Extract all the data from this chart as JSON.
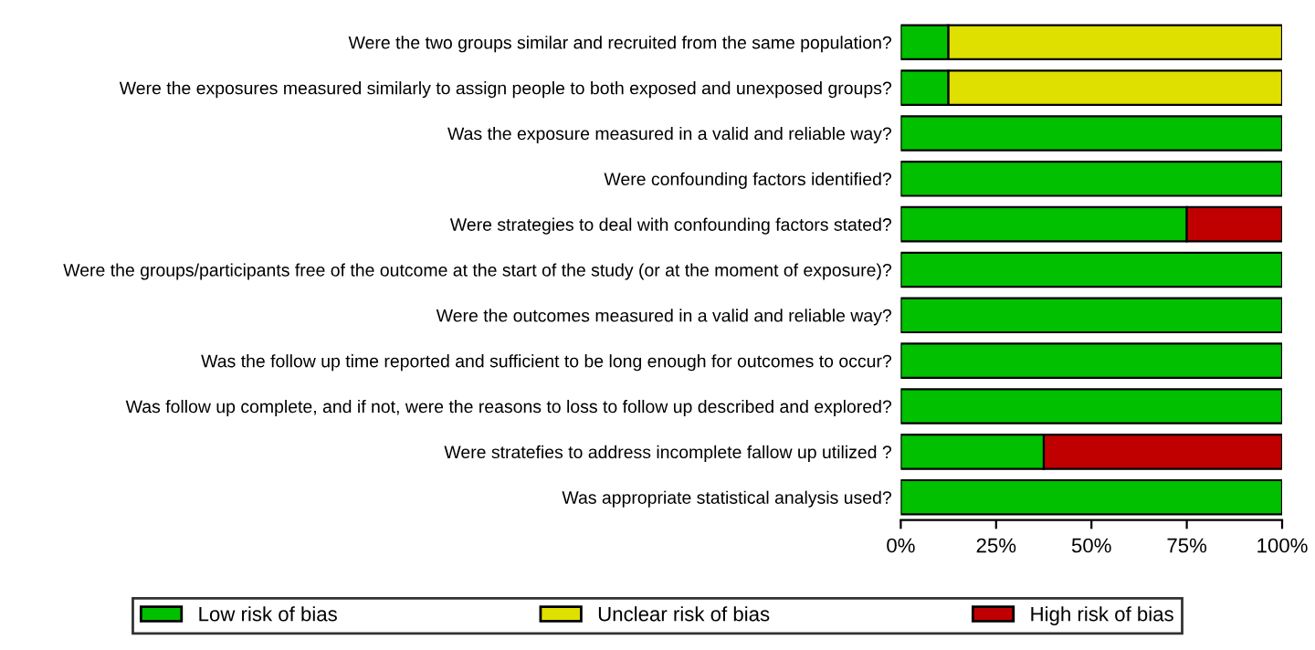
{
  "chart_data": {
    "type": "bar",
    "orientation": "horizontal",
    "stacked": true,
    "categories": [
      "Were the two groups similar and recruited from the same population?",
      "Were the exposures measured similarly to assign people to both exposed and unexposed groups?",
      "Was the exposure measured in a valid and reliable way?",
      "Were confounding factors identified?",
      "Were strategies to deal with confounding factors stated?",
      "Were the groups/participants free of the outcome at the start of the study (or at the moment of exposure)?",
      "Were the outcomes measured in a valid and reliable way?",
      "Was the follow up time reported and sufficient to be long enough for outcomes to occur?",
      "Was follow up complete, and if not, were the reasons to loss to follow up described and explored?",
      "Were stratefies to address incomplete fallow up utilized ?",
      "Was appropriate statistical analysis used?"
    ],
    "series": [
      {
        "name": "Low risk of bias",
        "color": "#00c000",
        "values": [
          12.5,
          12.5,
          100,
          100,
          75,
          100,
          100,
          100,
          100,
          37.5,
          100
        ]
      },
      {
        "name": "Unclear risk of bias",
        "color": "#e0e000",
        "values": [
          87.5,
          87.5,
          0,
          0,
          0,
          0,
          0,
          0,
          0,
          0,
          0
        ]
      },
      {
        "name": "High risk of bias",
        "color": "#c00000",
        "values": [
          0,
          0,
          0,
          0,
          25,
          0,
          0,
          0,
          0,
          62.5,
          0
        ]
      }
    ],
    "xlim": [
      0,
      100
    ],
    "xticks": [
      {
        "value": 0,
        "label": "0%"
      },
      {
        "value": 25,
        "label": "25%"
      },
      {
        "value": 50,
        "label": "50%"
      },
      {
        "value": 75,
        "label": "75%"
      },
      {
        "value": 100,
        "label": "100%"
      }
    ],
    "legend": "bottom",
    "grid": false
  }
}
